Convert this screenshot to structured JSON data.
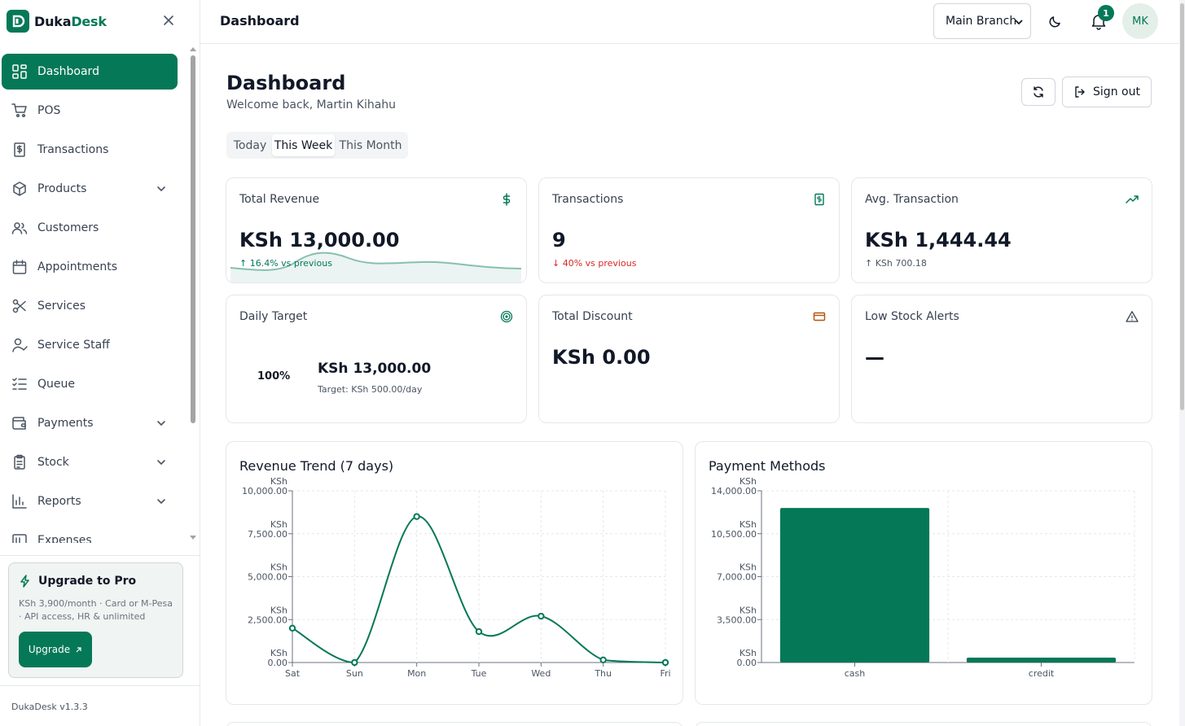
{
  "brand": {
    "name_part1": "Duka",
    "name_part2": "Desk"
  },
  "sidebar": {
    "items": [
      {
        "label": "Dashboard",
        "icon": "dashboard-icon",
        "active": true,
        "has_chevron": false
      },
      {
        "label": "POS",
        "icon": "cart-icon",
        "active": false,
        "has_chevron": false
      },
      {
        "label": "Transactions",
        "icon": "receipt-icon",
        "active": false,
        "has_chevron": false
      },
      {
        "label": "Products",
        "icon": "box-icon",
        "active": false,
        "has_chevron": true
      },
      {
        "label": "Customers",
        "icon": "users-icon",
        "active": false,
        "has_chevron": false
      },
      {
        "label": "Appointments",
        "icon": "calendar-icon",
        "active": false,
        "has_chevron": false
      },
      {
        "label": "Services",
        "icon": "scissors-icon",
        "active": false,
        "has_chevron": false
      },
      {
        "label": "Service Staff",
        "icon": "user-check-icon",
        "active": false,
        "has_chevron": false
      },
      {
        "label": "Queue",
        "icon": "list-checks-icon",
        "active": false,
        "has_chevron": false
      },
      {
        "label": "Payments",
        "icon": "wallet-icon",
        "active": false,
        "has_chevron": true
      },
      {
        "label": "Stock",
        "icon": "clipboard-icon",
        "active": false,
        "has_chevron": true
      },
      {
        "label": "Reports",
        "icon": "bar-chart-icon",
        "active": false,
        "has_chevron": true
      },
      {
        "label": "Expenses",
        "icon": "expenses-icon",
        "active": false,
        "has_chevron": false
      }
    ],
    "upgrade": {
      "title": "Upgrade to Pro",
      "description": "KSh 3,900/month · Card or M-Pesa · API access, HR & unlimited",
      "button": "Upgrade"
    },
    "version": "DukaDesk v1.3.3"
  },
  "topbar": {
    "title": "Dashboard",
    "branch": "Main Branch",
    "notification_count": "1",
    "avatar_initials": "MK"
  },
  "page": {
    "title": "Dashboard",
    "subtitle": "Welcome back, Martin Kihahu",
    "signout_label": "Sign out",
    "tabs": [
      "Today",
      "This Week",
      "This Month"
    ],
    "active_tab": "This Week"
  },
  "cards": {
    "total_revenue": {
      "label": "Total Revenue",
      "value": "KSh 13,000.00",
      "delta": "↑ 16.4% vs previous"
    },
    "transactions": {
      "label": "Transactions",
      "value": "9",
      "delta": "↓ 40% vs previous"
    },
    "avg_transaction": {
      "label": "Avg. Transaction",
      "value": "KSh 1,444.44",
      "delta": "↑ KSh 700.18"
    },
    "daily_target": {
      "label": "Daily Target",
      "percent": "100%",
      "value": "KSh 13,000.00",
      "target": "Target: KSh 500.00/day"
    },
    "total_discount": {
      "label": "Total Discount",
      "value": "KSh 0.00"
    },
    "low_stock": {
      "label": "Low Stock Alerts",
      "value": "—"
    }
  },
  "colors": {
    "accent": "#047857",
    "down": "#dc2626",
    "discount_icon": "#b45309"
  },
  "chart_data": [
    {
      "type": "line",
      "title": "Revenue Trend (7 days)",
      "x": [
        "Sat",
        "Sun",
        "Mon",
        "Tue",
        "Wed",
        "Thu",
        "Fri"
      ],
      "values": [
        2000,
        0,
        8500,
        1800,
        2700,
        150,
        0
      ],
      "ylim": [
        0,
        10000
      ],
      "yticks": [
        0,
        2500,
        5000,
        7500,
        10000
      ],
      "ytick_labels": [
        [
          "KSh",
          "0.00"
        ],
        [
          "KSh",
          "2,500.00"
        ],
        [
          "KSh",
          "5,000.00"
        ],
        [
          "KSh",
          "7,500.00"
        ],
        [
          "KSh",
          "10,000.00"
        ]
      ],
      "grid": true
    },
    {
      "type": "bar",
      "title": "Payment Methods",
      "categories": [
        "cash",
        "credit"
      ],
      "values": [
        12600,
        400
      ],
      "ylim": [
        0,
        14000
      ],
      "yticks": [
        0,
        3500,
        7000,
        10500,
        14000
      ],
      "ytick_labels": [
        [
          "KSh",
          "0.00"
        ],
        [
          "KSh",
          "3,500.00"
        ],
        [
          "KSh",
          "7,000.00"
        ],
        [
          "KSh",
          "10,500.00"
        ],
        [
          "KSh",
          "14,000.00"
        ]
      ],
      "grid": true
    }
  ]
}
